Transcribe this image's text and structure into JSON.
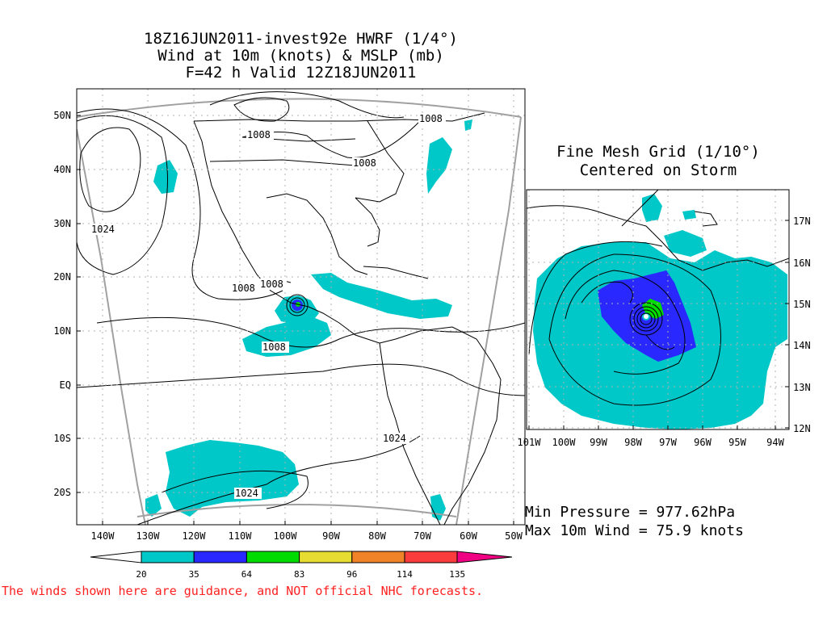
{
  "title": {
    "line1": "18Z16JUN2011-invest92e HWRF (1/4°)",
    "line2": "Wind at 10m (knots) & MSLP (mb)",
    "line3": "F=42 h Valid 12Z18JUN2011"
  },
  "main_map": {
    "lat_labels": [
      "50N",
      "40N",
      "30N",
      "20N",
      "10N",
      "EQ",
      "10S",
      "20S"
    ],
    "lon_labels": [
      "140W",
      "130W",
      "120W",
      "110W",
      "100W",
      "90W",
      "80W",
      "70W",
      "60W",
      "50W"
    ],
    "contour_labels": [
      "1008",
      "1008",
      "1008",
      "1024",
      "1008",
      "1008",
      "1008",
      "1024",
      "1024"
    ]
  },
  "inset": {
    "title_line1": "Fine Mesh Grid (1/10°)",
    "title_line2": "Centered on Storm",
    "lat_labels": [
      "17N",
      "16N",
      "15N",
      "14N",
      "13N",
      "12N"
    ],
    "lon_labels": [
      "101W",
      "100W",
      "99W",
      "98W",
      "97W",
      "96W",
      "95W",
      "94W"
    ]
  },
  "stats": {
    "min_pressure": "Min Pressure = 977.62hPa",
    "max_wind": "Max 10m Wind = 75.9 knots"
  },
  "colorbar": {
    "levels": [
      "20",
      "35",
      "64",
      "83",
      "96",
      "114",
      "135"
    ],
    "colors": [
      "#00c8c8",
      "#2828ff",
      "#00dc00",
      "#e6dc32",
      "#f08228",
      "#fa3c3c",
      "#f00082"
    ]
  },
  "disclaimer": "The winds shown here are guidance, and NOT official NHC forecasts.",
  "colors": {
    "wind_20_35": "#00c8c8",
    "wind_35_64": "#2828ff",
    "wind_64_83": "#00dc00",
    "domain_outline": "#a0a0a0",
    "disclaimer_text": "#ff2020"
  }
}
